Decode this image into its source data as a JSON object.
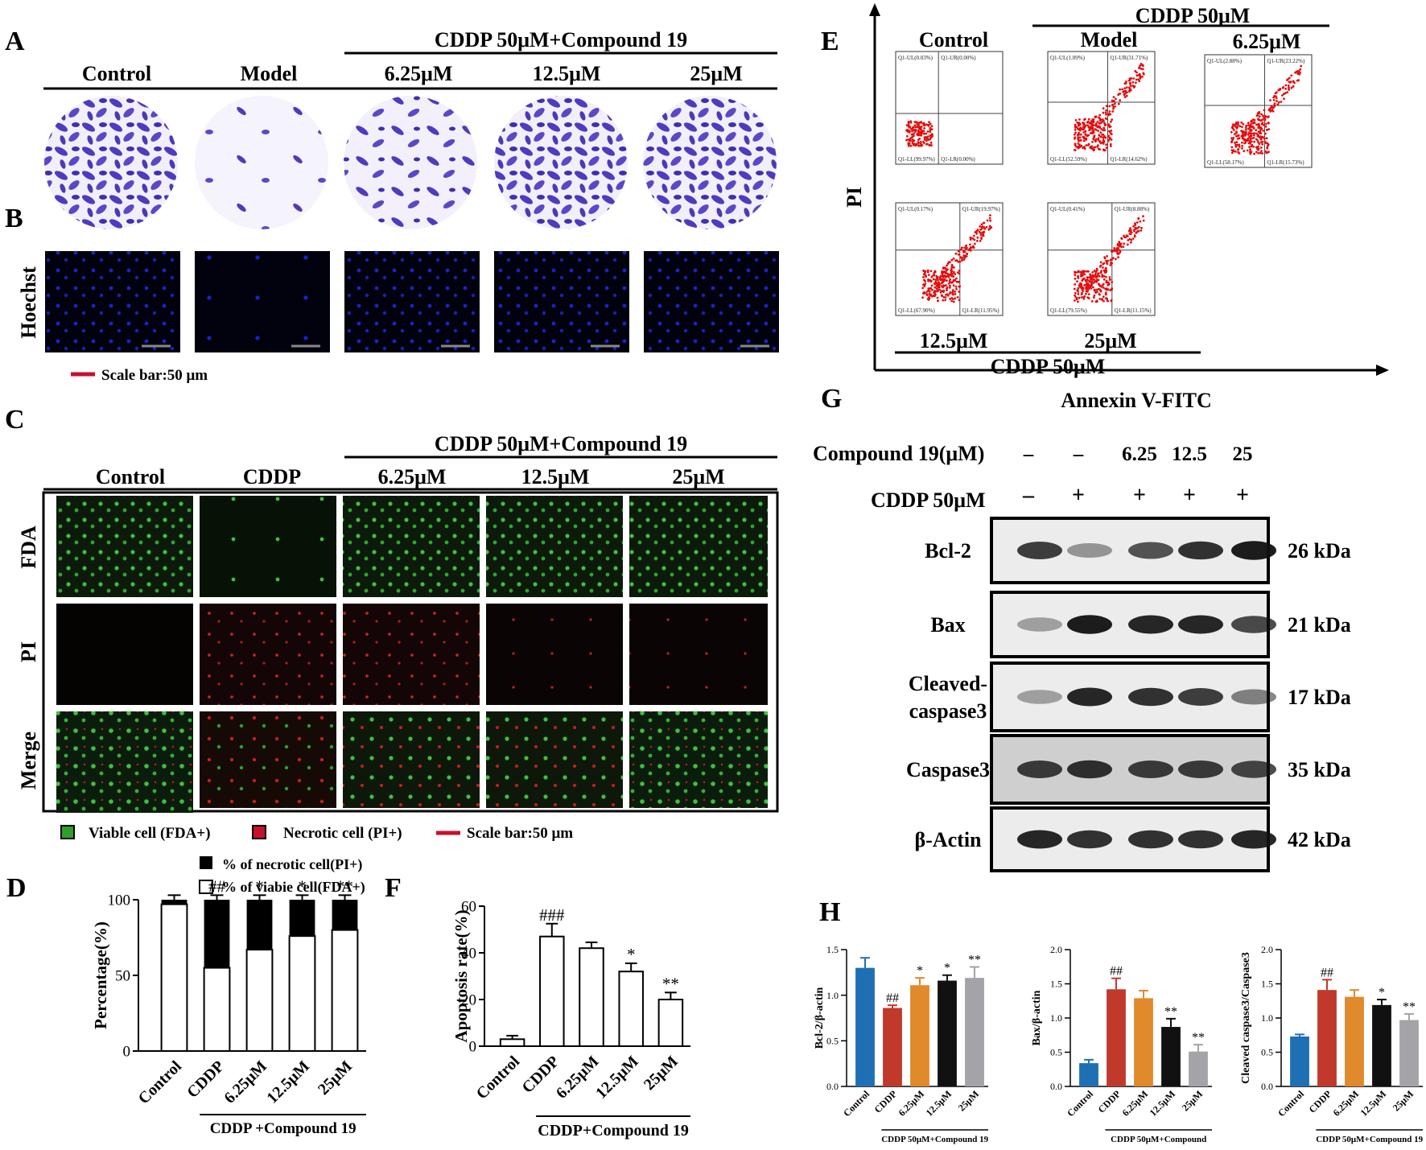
{
  "panel_letters": {
    "A": "A",
    "B": "B",
    "C": "C",
    "D": "D",
    "E": "E",
    "F": "F",
    "G": "G",
    "H": "H"
  },
  "panel_a": {
    "group_header": "CDDP 50μM+Compound 19",
    "columns": [
      "Control",
      "Model",
      "6.25μM",
      "12.5μM",
      "25μM"
    ]
  },
  "panel_b": {
    "row_label": "Hoechst",
    "scale_bar": "Scale bar:50 μm"
  },
  "panel_c": {
    "group_header": "CDDP 50μM+Compound 19",
    "columns": [
      "Control",
      "CDDP",
      "6.25μM",
      "12.5μM",
      "25μM"
    ],
    "rows": [
      "FDA",
      "PI",
      "Merge"
    ],
    "legend": [
      "Viable cell (FDA+)",
      "Necrotic cell (PI+)",
      "Scale bar:50 μm"
    ]
  },
  "panel_e": {
    "top_header": "CDDP 50μM",
    "bottom_header": "CDDP 50μM",
    "labels_top": [
      "Control",
      "Model",
      "6.25μM"
    ],
    "labels_bottom": [
      "12.5μM",
      "25μM"
    ],
    "y_axis": "PI",
    "x_axis": "Annexin V-FITC",
    "plots": [
      {
        "UL": "Q1-UL(0.03%)",
        "UR": "Q1-UR(0.00%)",
        "LL": "Q1-LL(99.97%)",
        "LR": "Q1-LR(0.00%)"
      },
      {
        "UL": "Q1-UL(1.09%)",
        "UR": "Q1-UR(31.71%)",
        "LL": "Q1-LL(52.59%)",
        "LR": "Q1-LR(14.62%)"
      },
      {
        "UL": "Q1-UL(2.88%)",
        "UR": "Q1-UR(23.22%)",
        "LL": "Q1-LL(58.17%)",
        "LR": "Q1-LR(15.73%)"
      },
      {
        "UL": "Q1-UL(0.17%)",
        "UR": "Q1-UR(19.97%)",
        "LL": "Q1-LL(67.90%)",
        "LR": "Q1-LR(11.95%)"
      },
      {
        "UL": "Q1-UL(0.41%)",
        "UR": "Q1-UR(8.88%)",
        "LL": "Q1-LL(79.55%)",
        "LR": "Q1-LR(11.15%)"
      }
    ]
  },
  "panel_g": {
    "row1_label": "Compound 19(μM)",
    "row1_values": [
      "–",
      "–",
      "6.25",
      "12.5",
      "25"
    ],
    "row2_label": "CDDP 50μM",
    "row2_values": [
      "–",
      "+",
      "+",
      "+",
      "+"
    ],
    "bands": [
      {
        "name": "Bcl-2",
        "kda": "26 kDa"
      },
      {
        "name": "Bax",
        "kda": "21 kDa"
      },
      {
        "name": "Cleaved-\ncaspase3",
        "kda": "17 kDa"
      },
      {
        "name": "Caspase3",
        "kda": "35 kDa"
      },
      {
        "name": "β-Actin",
        "kda": "42 kDa"
      }
    ]
  },
  "chart_data": [
    {
      "id": "D",
      "type": "bar",
      "categories": [
        "Control",
        "CDDP",
        "6.25μM",
        "12.5μM",
        "25μM"
      ],
      "series": [
        {
          "name": "% of necrotic cell(PI+)",
          "values": [
            3,
            45,
            33,
            24,
            20
          ]
        },
        {
          "name": "% of viabie cell(FDA+)",
          "values": [
            97,
            55,
            67,
            76,
            80
          ]
        }
      ],
      "ylabel": "Percentage(%)",
      "ylim": [
        0,
        100
      ],
      "yticks": [
        "0",
        "50",
        "100"
      ],
      "annotations": [
        "",
        "##",
        "*",
        "*",
        "**"
      ],
      "group_label": "CDDP +Compound 19"
    },
    {
      "id": "F",
      "type": "bar",
      "categories": [
        "Control",
        "CDDP",
        "6.25μM",
        "12.5μM",
        "25μM"
      ],
      "values": [
        3,
        47,
        42,
        32,
        20
      ],
      "errors": [
        1.5,
        5.5,
        2.5,
        3.5,
        3
      ],
      "ylabel": "Apoptosis rate(%)",
      "ylim": [
        0,
        60
      ],
      "yticks": [
        "0",
        "20",
        "40",
        "60"
      ],
      "annotations": [
        "",
        "###",
        "",
        "*",
        "**"
      ],
      "group_label": "CDDP+Compound 19"
    },
    {
      "id": "H1",
      "type": "bar",
      "categories": [
        "Control",
        "CDDP",
        "6.25μM",
        "12.5μM",
        "25μM"
      ],
      "values": [
        1.3,
        0.86,
        1.11,
        1.16,
        1.19
      ],
      "errors": [
        0.11,
        0.03,
        0.08,
        0.06,
        0.12
      ],
      "ylabel": "Bcl-2/β-actin",
      "ylim": [
        0,
        1.5
      ],
      "yticks": [
        "0.0",
        "0.5",
        "1.0",
        "1.5"
      ],
      "annotations": [
        "",
        "##",
        "*",
        "*",
        "**"
      ],
      "colors": [
        "#1f6fb5",
        "#c0392b",
        "#e08a2c",
        "#111111",
        "#a3a3a8"
      ],
      "group_label": "CDDP 50μM+Compound 19"
    },
    {
      "id": "H2",
      "type": "bar",
      "categories": [
        "Control",
        "CDDP",
        "6.25μM",
        "12.5μM",
        "25μM"
      ],
      "values": [
        0.34,
        1.42,
        1.29,
        0.87,
        0.51
      ],
      "errors": [
        0.05,
        0.16,
        0.11,
        0.12,
        0.1
      ],
      "ylabel": "Bax/β-actin",
      "ylim": [
        0,
        2.0
      ],
      "yticks": [
        "0.0",
        "0.5",
        "1.0",
        "1.5",
        "2.0"
      ],
      "annotations": [
        "",
        "##",
        "",
        "**",
        "**"
      ],
      "colors": [
        "#1f6fb5",
        "#c0392b",
        "#e08a2c",
        "#111111",
        "#a3a3a8"
      ],
      "group_label": "CDDP 50μM+Compound"
    },
    {
      "id": "H3",
      "type": "bar",
      "categories": [
        "Control",
        "CDDP",
        "6.25μM",
        "12.5μM",
        "25μM"
      ],
      "values": [
        0.73,
        1.41,
        1.31,
        1.19,
        0.97
      ],
      "errors": [
        0.03,
        0.15,
        0.1,
        0.08,
        0.09
      ],
      "ylabel": "Cleaved caspase3/Caspase3",
      "ylim": [
        0,
        2.0
      ],
      "yticks": [
        "0.0",
        "0.5",
        "1.0",
        "1.5",
        "2.0"
      ],
      "annotations": [
        "",
        "##",
        "",
        "*",
        "**"
      ],
      "colors": [
        "#1f6fb5",
        "#c0392b",
        "#e08a2c",
        "#111111",
        "#a3a3a8"
      ],
      "group_label": "CDDP 50μM+Compound 19"
    }
  ]
}
